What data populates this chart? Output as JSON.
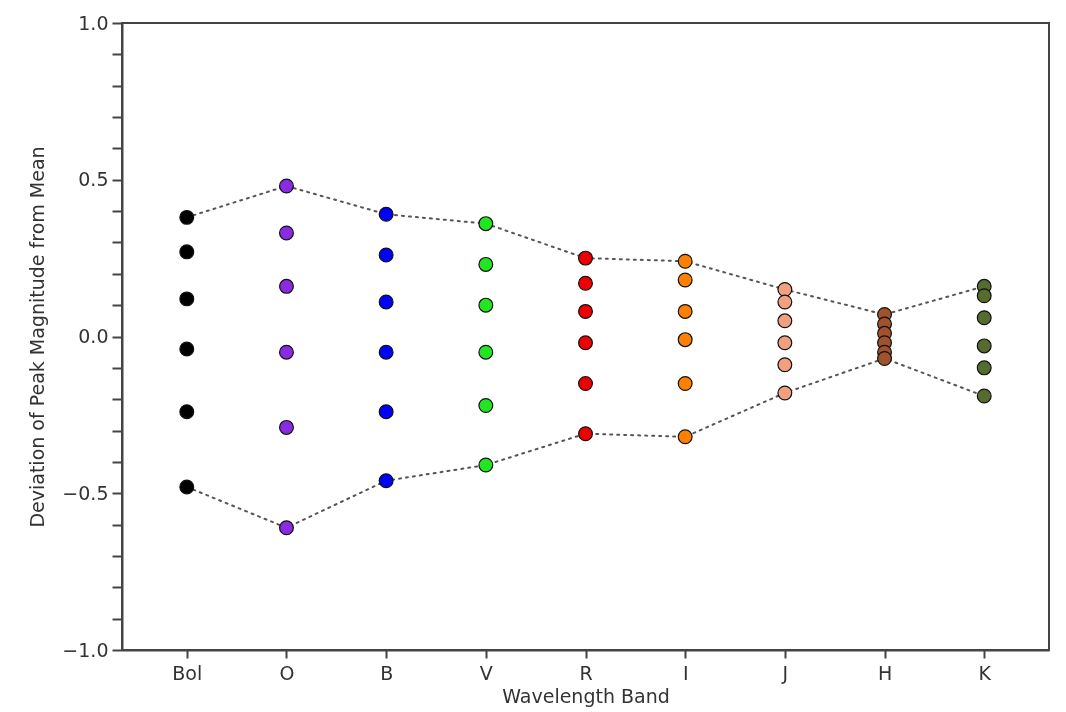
{
  "chart_data": {
    "type": "scatter",
    "xlabel": "Wavelength Band",
    "ylabel": "Deviation of Peak Magnitude from Mean",
    "marker": "circle",
    "categories": [
      "Bol",
      "O",
      "B",
      "V",
      "R",
      "I",
      "J",
      "H",
      "K"
    ],
    "ylim": [
      -1.0,
      1.0
    ],
    "yticks": [
      {
        "value": -1.0,
        "label": "−1.0"
      },
      {
        "value": -0.9,
        "label": null
      },
      {
        "value": -0.8,
        "label": null
      },
      {
        "value": -0.7,
        "label": null
      },
      {
        "value": -0.6,
        "label": null
      },
      {
        "value": -0.5,
        "label": "−0.5"
      },
      {
        "value": -0.4,
        "label": null
      },
      {
        "value": -0.3,
        "label": null
      },
      {
        "value": -0.2,
        "label": null
      },
      {
        "value": -0.1,
        "label": null
      },
      {
        "value": 0,
        "label": "0.0"
      },
      {
        "value": 0.1,
        "label": null
      },
      {
        "value": 0.2,
        "label": null
      },
      {
        "value": 0.3,
        "label": null
      },
      {
        "value": 0.4,
        "label": null
      },
      {
        "value": 0.5,
        "label": "0.5"
      },
      {
        "value": 0.6,
        "label": null
      },
      {
        "value": 0.7,
        "label": null
      },
      {
        "value": 0.8,
        "label": null
      },
      {
        "value": 0.9,
        "label": null
      },
      {
        "value": 1.0,
        "label": "1.0"
      }
    ],
    "series": [
      {
        "color": "#000000",
        "x": [
          "Bol",
          "Bol",
          "Bol",
          "Bol",
          "Bol",
          "Bol"
        ],
        "values": [
          0.38,
          0.27,
          0.12,
          -0.04,
          -0.24,
          -0.48
        ]
      },
      {
        "color": "#8a2be2",
        "x": [
          "O",
          "O",
          "O",
          "O",
          "O",
          "O"
        ],
        "values": [
          0.48,
          0.33,
          0.16,
          -0.05,
          -0.29,
          -0.61
        ]
      },
      {
        "color": "#0000ff",
        "x": [
          "B",
          "B",
          "B",
          "B",
          "B",
          "B"
        ],
        "values": [
          0.39,
          0.26,
          0.11,
          -0.05,
          -0.24,
          -0.46
        ]
      },
      {
        "color": "#22e622",
        "x": [
          "V",
          "V",
          "V",
          "V",
          "V",
          "V"
        ],
        "values": [
          0.36,
          0.23,
          0.1,
          -0.05,
          -0.22,
          -0.41
        ]
      },
      {
        "color": "#ee0000",
        "x": [
          "R",
          "R",
          "R",
          "R",
          "R",
          "R"
        ],
        "values": [
          0.25,
          0.17,
          0.08,
          -0.02,
          -0.15,
          -0.31
        ]
      },
      {
        "color": "#ff8000",
        "x": [
          "I",
          "I",
          "I",
          "I",
          "I",
          "I"
        ],
        "values": [
          0.24,
          0.18,
          0.08,
          -0.01,
          -0.15,
          -0.32
        ]
      },
      {
        "color": "#f2a080",
        "x": [
          "J",
          "J",
          "J",
          "J",
          "J",
          "J"
        ],
        "values": [
          0.15,
          0.11,
          0.05,
          -0.02,
          -0.09,
          -0.18
        ]
      },
      {
        "color": "#a0522d",
        "x": [
          "H",
          "H",
          "H",
          "H",
          "H",
          "H"
        ],
        "values": [
          0.07,
          0.04,
          0.01,
          -0.02,
          -0.05,
          -0.07
        ]
      },
      {
        "color": "#556b2f",
        "x": [
          "K",
          "K",
          "K",
          "K",
          "K",
          "K"
        ],
        "values": [
          0.16,
          0.13,
          0.06,
          -0.03,
          -0.1,
          -0.19
        ]
      },
      {
        "type": "line",
        "marker": "none",
        "color": "#555555",
        "line_style": "dotted",
        "values": [
          0.38,
          0.48,
          0.39,
          0.36,
          0.25,
          0.24,
          0.15,
          0.07,
          0.16
        ]
      },
      {
        "type": "line",
        "marker": "none",
        "color": "#555555",
        "line_style": "dotted",
        "values": [
          -0.48,
          -0.61,
          -0.46,
          -0.41,
          -0.31,
          -0.32,
          -0.18,
          -0.07,
          -0.19
        ]
      }
    ]
  }
}
